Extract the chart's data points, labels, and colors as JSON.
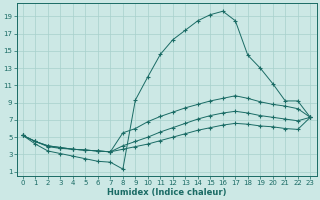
{
  "xlabel": "Humidex (Indice chaleur)",
  "bg_color": "#cce8e5",
  "line_color": "#1a6b65",
  "grid_color": "#a8d0cc",
  "xlim": [
    -0.5,
    23.5
  ],
  "ylim": [
    0.5,
    20.5
  ],
  "xticks": [
    0,
    1,
    2,
    3,
    4,
    5,
    6,
    7,
    8,
    9,
    10,
    11,
    12,
    13,
    14,
    15,
    16,
    17,
    18,
    19,
    20,
    21,
    22,
    23
  ],
  "yticks": [
    1,
    3,
    5,
    7,
    9,
    11,
    13,
    15,
    17,
    19
  ],
  "series1_y": [
    5.2,
    4.2,
    3.4,
    3.1,
    2.8,
    2.5,
    2.2,
    2.1,
    1.3,
    9.3,
    12.0,
    14.6,
    16.3,
    17.4,
    18.5,
    19.2,
    19.6,
    18.5,
    14.5,
    13.0,
    11.2,
    9.2,
    9.2,
    7.3
  ],
  "series2_y": [
    5.2,
    4.5,
    4.0,
    3.8,
    3.6,
    3.5,
    3.4,
    3.3,
    5.5,
    6.0,
    6.8,
    7.4,
    7.9,
    8.4,
    8.8,
    9.2,
    9.5,
    9.8,
    9.5,
    9.1,
    8.8,
    8.6,
    8.3,
    7.3
  ],
  "series3_y": [
    5.2,
    4.5,
    4.0,
    3.8,
    3.6,
    3.5,
    3.4,
    3.3,
    4.0,
    4.5,
    5.0,
    5.6,
    6.1,
    6.6,
    7.1,
    7.5,
    7.8,
    8.0,
    7.8,
    7.5,
    7.3,
    7.1,
    6.9,
    7.3
  ],
  "series4_y": [
    5.2,
    4.5,
    3.9,
    3.7,
    3.6,
    3.5,
    3.4,
    3.3,
    3.6,
    3.9,
    4.2,
    4.6,
    5.0,
    5.4,
    5.8,
    6.1,
    6.4,
    6.6,
    6.5,
    6.3,
    6.2,
    6.0,
    5.9,
    7.3
  ]
}
